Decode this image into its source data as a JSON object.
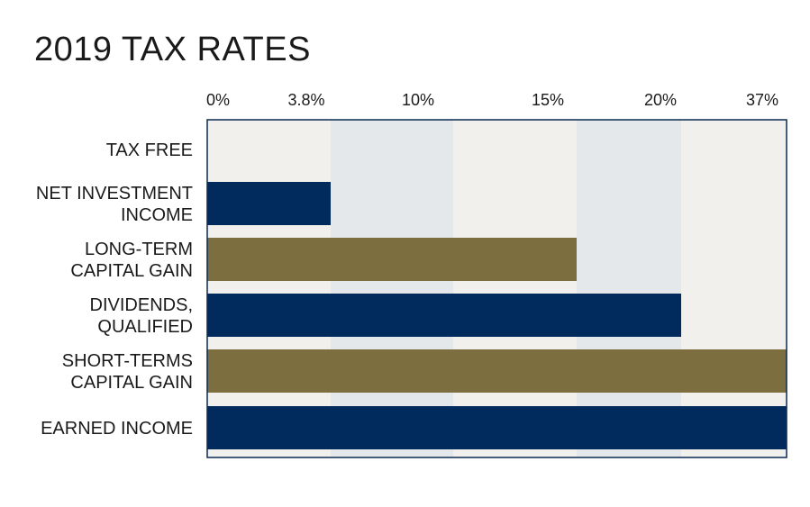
{
  "chart_data": {
    "type": "bar",
    "orientation": "horizontal",
    "title": "2019 TAX RATES",
    "xlabel": "",
    "ylabel": "",
    "tick_labels": [
      "0%",
      "3.8%",
      "10%",
      "15%",
      "20%",
      "37%"
    ],
    "tick_values": [
      0,
      3.8,
      10,
      15,
      20,
      37
    ],
    "axis_scale": "categorical-bands",
    "categories": [
      [
        "TAX FREE"
      ],
      [
        "NET INVESTMENT",
        "INCOME"
      ],
      [
        "LONG-TERM",
        "CAPITAL GAIN"
      ],
      [
        "DIVIDENDS,",
        "QUALIFIED"
      ],
      [
        "SHORT-TERMS",
        "CAPITAL GAIN"
      ],
      [
        "EARNED INCOME"
      ]
    ],
    "values": [
      0,
      3.8,
      15,
      20,
      37,
      37
    ],
    "legend": "none",
    "grid": false
  },
  "colors": {
    "navy": "#002b5c",
    "gold": "#7d6e40",
    "band_light": "#f2f0ec",
    "band_blue": "#e4e8ea",
    "frame": "#0a2a50"
  }
}
